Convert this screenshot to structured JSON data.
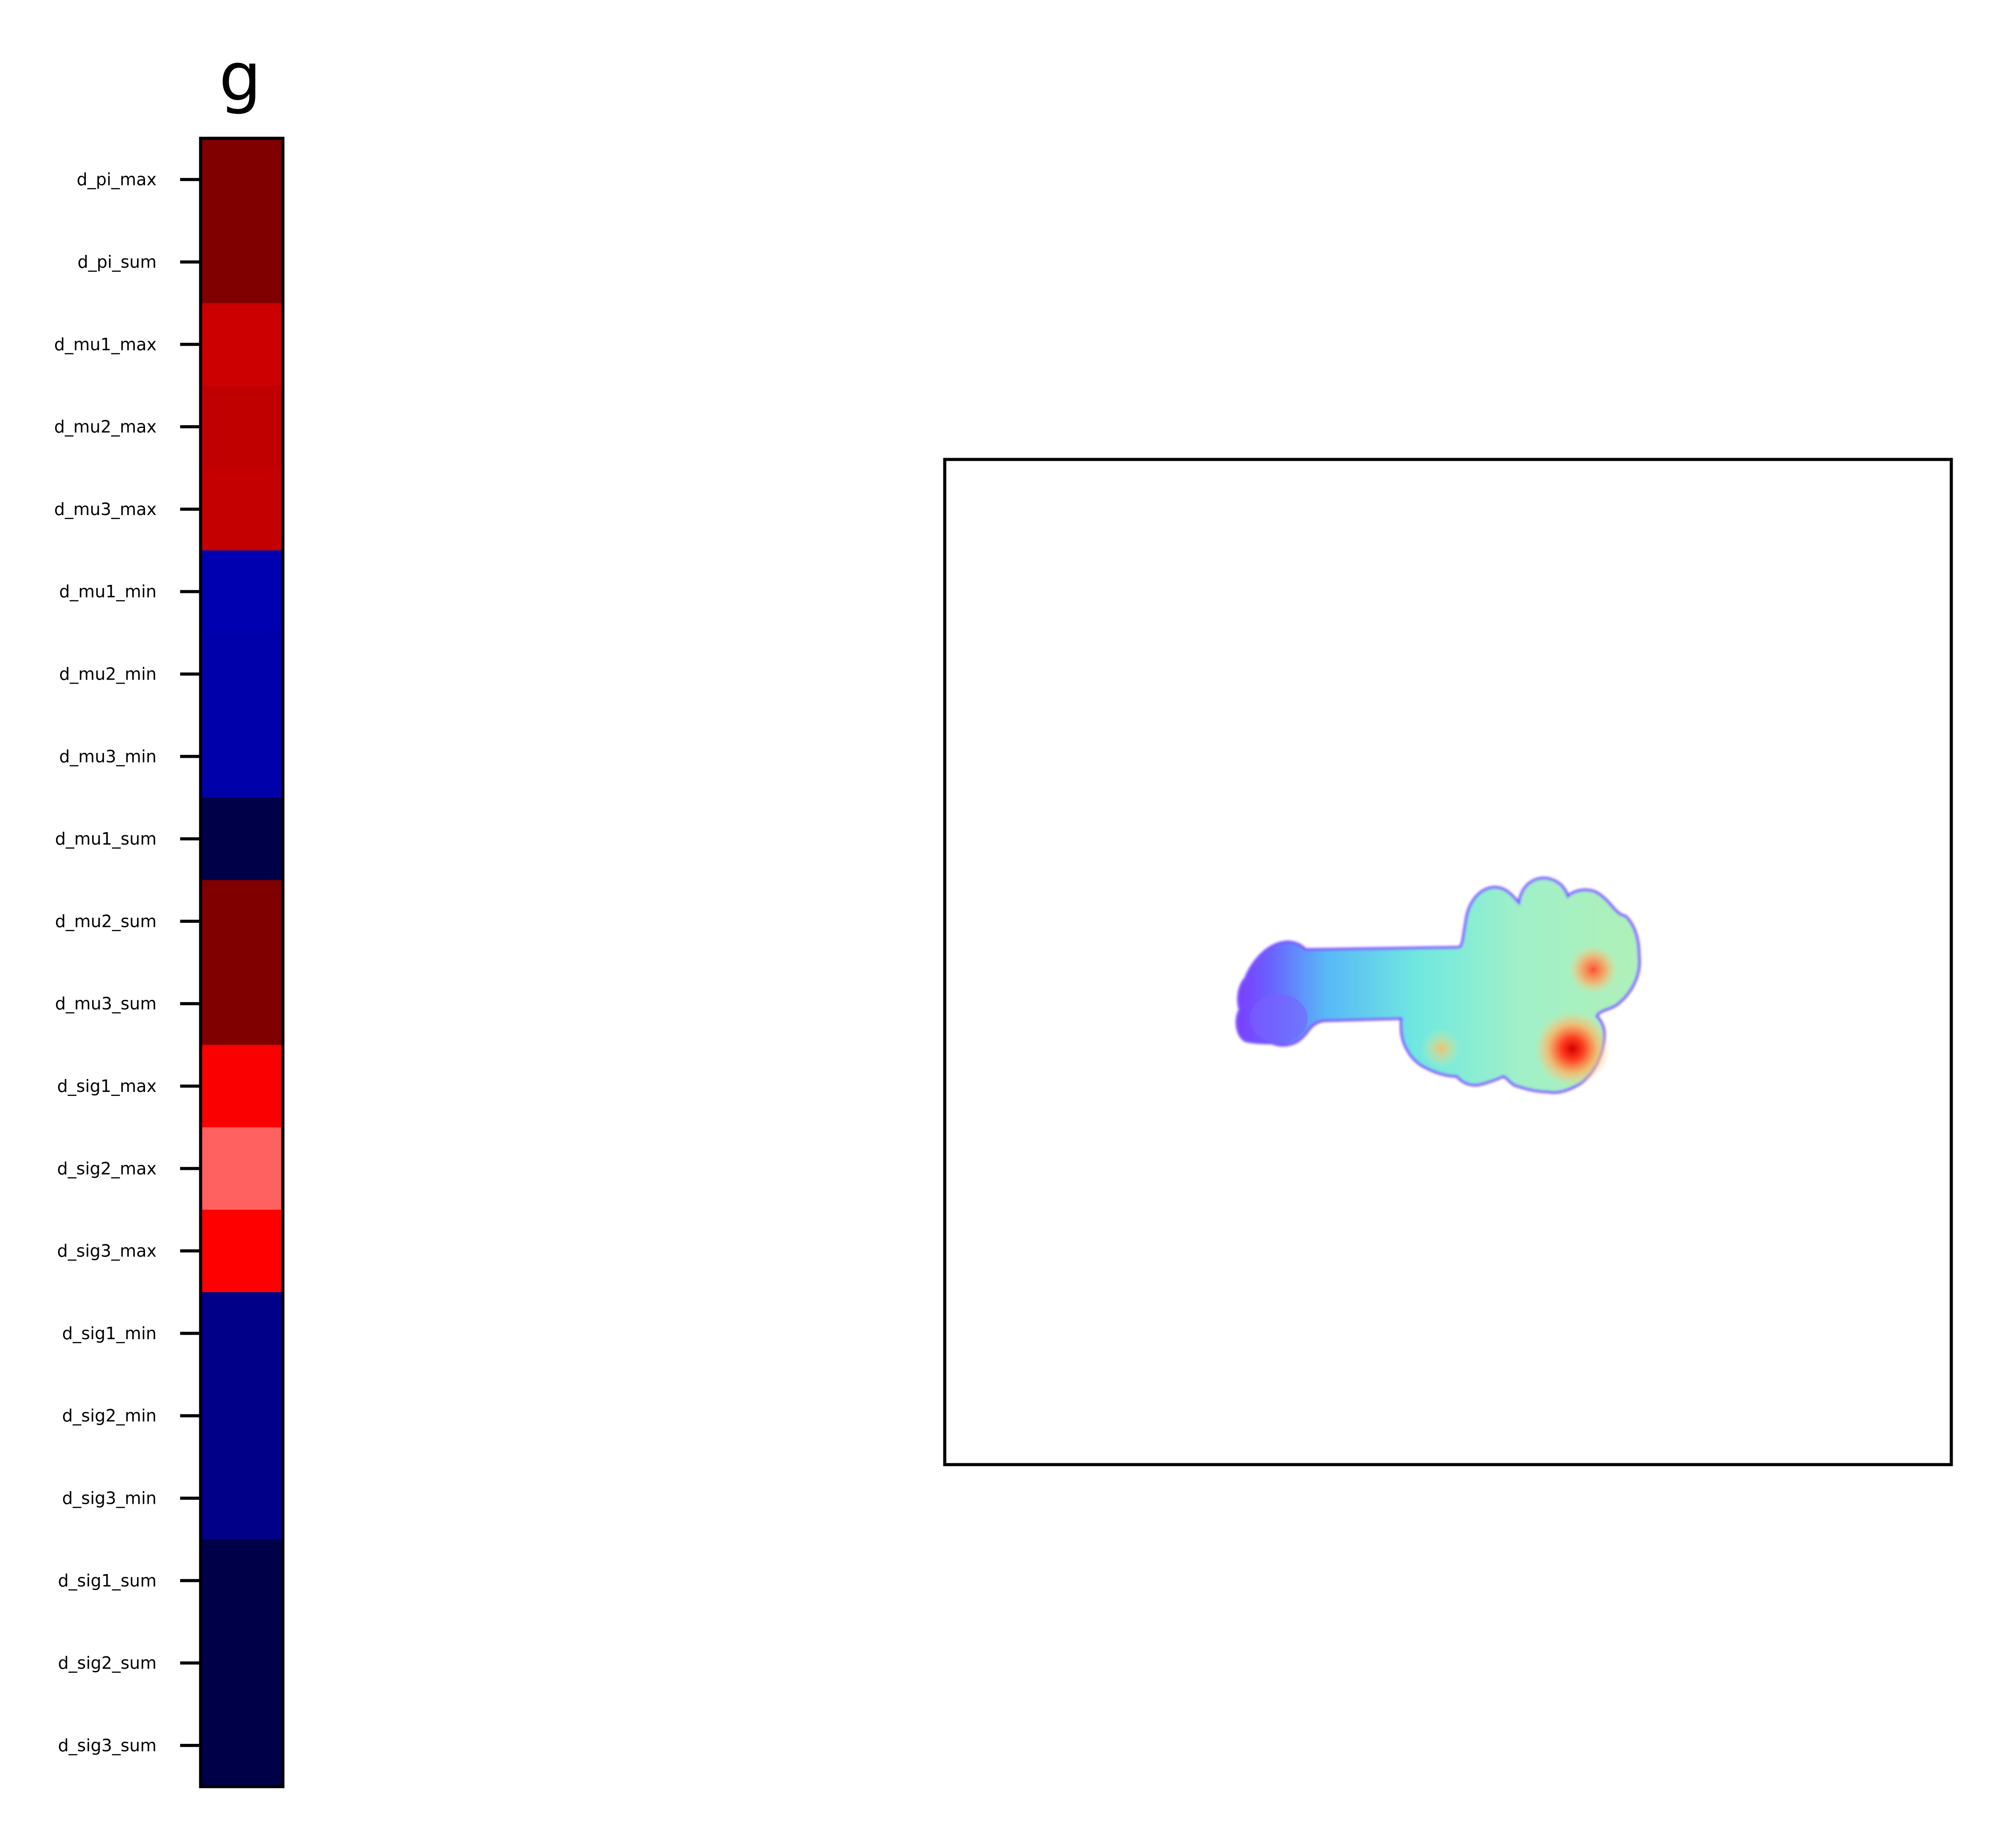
{
  "chart_data": [
    {
      "type": "heatmap",
      "title": "g",
      "row_labels": [
        "d_pi_max",
        "d_pi_sum",
        "d_mu1_max",
        "d_mu2_max",
        "d_mu3_max",
        "d_mu1_min",
        "d_mu2_min",
        "d_mu3_min",
        "d_mu1_sum",
        "d_mu2_sum",
        "d_mu3_sum",
        "d_sig1_max",
        "d_sig2_max",
        "d_sig3_max",
        "d_sig1_min",
        "d_sig2_min",
        "d_sig3_min",
        "d_sig1_sum",
        "d_sig2_sum",
        "d_sig3_sum"
      ],
      "colors": [
        "#800000",
        "#800000",
        "#cc0000",
        "#c00000",
        "#c40000",
        "#0000b0",
        "#0000aa",
        "#0000aa",
        "#000048",
        "#800000",
        "#800000",
        "#fa0000",
        "#ff6060",
        "#fe0000",
        "#000088",
        "#000088",
        "#000088",
        "#000048",
        "#000048",
        "#000048"
      ],
      "colormap": "seismic",
      "xlabel": "",
      "ylabel": ""
    },
    {
      "type": "heatmap",
      "title": "",
      "colormap": "rainbow",
      "background": "#ffffff",
      "ticks": "none",
      "hotspots": [
        {
          "x": 0.625,
          "y": 0.593,
          "intensity": 1.0
        },
        {
          "x": 0.643,
          "y": 0.513,
          "intensity": 0.85
        },
        {
          "x": 0.49,
          "y": 0.6,
          "intensity": 0.6
        }
      ]
    }
  ]
}
